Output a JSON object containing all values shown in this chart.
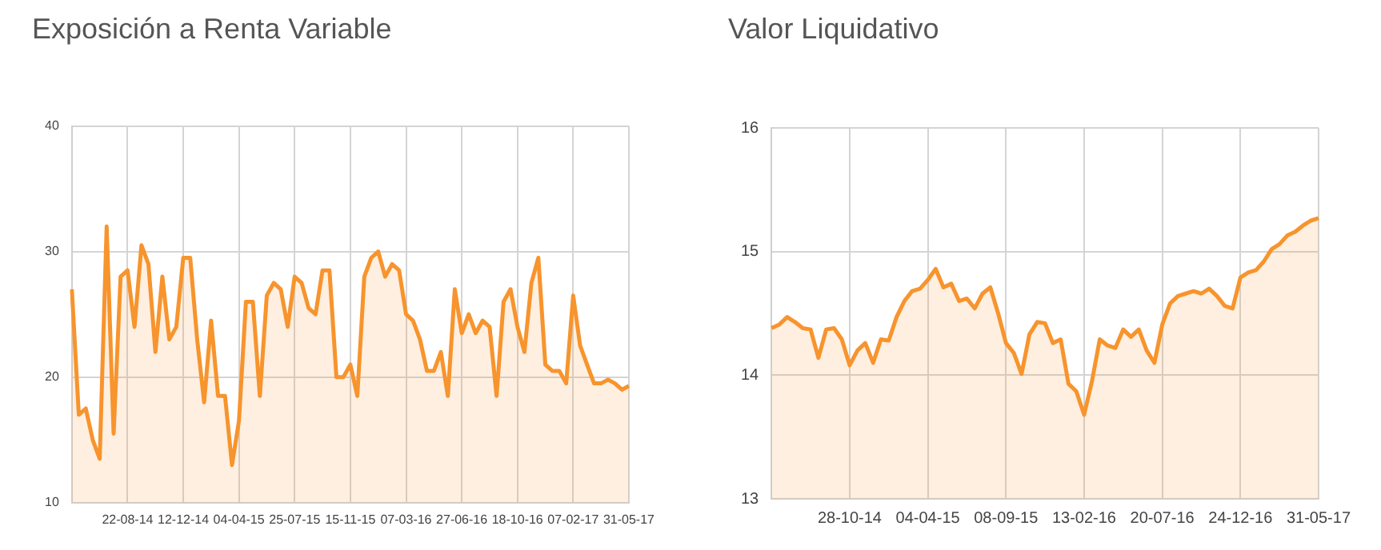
{
  "chart_data": [
    {
      "type": "area",
      "title": "Exposición a Renta Variable",
      "categories": [
        null,
        null,
        null,
        null,
        null,
        null,
        null,
        null,
        "22-08-14",
        null,
        null,
        null,
        null,
        null,
        null,
        null,
        "12-12-14",
        null,
        null,
        null,
        null,
        null,
        null,
        null,
        "04-04-15",
        null,
        null,
        null,
        null,
        null,
        null,
        null,
        "25-07-15",
        null,
        null,
        null,
        null,
        null,
        null,
        null,
        "15-11-15",
        null,
        null,
        null,
        null,
        null,
        null,
        null,
        "07-03-16",
        null,
        null,
        null,
        null,
        null,
        null,
        null,
        "27-06-16",
        null,
        null,
        null,
        null,
        null,
        null,
        null,
        "18-10-16",
        null,
        null,
        null,
        null,
        null,
        null,
        null,
        "07-02-17",
        null,
        null,
        null,
        null,
        null,
        null,
        null,
        "31-05-17"
      ],
      "series": [
        {
          "color": "#f7942d",
          "values": [
            27,
            17,
            17.5,
            15,
            13.5,
            32,
            15.5,
            28,
            28.5,
            24,
            30.5,
            29,
            22,
            28,
            23,
            24,
            29.5,
            29.5,
            23,
            18,
            24.5,
            18.5,
            18.5,
            13,
            16.5,
            26,
            26,
            18.5,
            26.5,
            27.5,
            27,
            24,
            28,
            27.5,
            25.5,
            25,
            28.5,
            28.5,
            20,
            20,
            21,
            18.5,
            28,
            29.5,
            30,
            28,
            29,
            28.5,
            25,
            24.5,
            23,
            20.5,
            20.5,
            22,
            18.5,
            27,
            23.5,
            25,
            23.5,
            24.5,
            24,
            18.5,
            26,
            27,
            24,
            22,
            27.5,
            29.5,
            21,
            20.5,
            20.5,
            19.5,
            26.5,
            22.5,
            21,
            19.5,
            19.5,
            19.8,
            19.5,
            19,
            19.3
          ]
        }
      ],
      "ylim": [
        10,
        40
      ],
      "yticks": [
        10,
        20,
        30,
        40
      ],
      "grid": true
    },
    {
      "type": "area",
      "title": "Valor Liquidativo",
      "categories": [
        null,
        null,
        null,
        null,
        null,
        null,
        null,
        null,
        null,
        null,
        "28-10-14",
        null,
        null,
        null,
        null,
        null,
        null,
        null,
        null,
        null,
        "04-04-15",
        null,
        null,
        null,
        null,
        null,
        null,
        null,
        null,
        null,
        "08-09-15",
        null,
        null,
        null,
        null,
        null,
        null,
        null,
        null,
        null,
        "13-02-16",
        null,
        null,
        null,
        null,
        null,
        null,
        null,
        null,
        null,
        "20-07-16",
        null,
        null,
        null,
        null,
        null,
        null,
        null,
        null,
        null,
        "24-12-16",
        null,
        null,
        null,
        null,
        null,
        null,
        null,
        null,
        null,
        "31-05-17"
      ],
      "series": [
        {
          "color": "#f7942d",
          "values": [
            14.38,
            14.41,
            14.47,
            14.43,
            14.38,
            14.37,
            14.14,
            14.37,
            14.38,
            14.29,
            14.08,
            14.2,
            14.26,
            14.1,
            14.29,
            14.28,
            14.47,
            14.6,
            14.68,
            14.7,
            14.77,
            14.86,
            14.71,
            14.74,
            14.6,
            14.62,
            14.54,
            14.66,
            14.71,
            14.5,
            14.26,
            14.18,
            14.01,
            14.33,
            14.43,
            14.42,
            14.26,
            14.29,
            13.93,
            13.87,
            13.68,
            13.95,
            14.29,
            14.24,
            14.22,
            14.37,
            14.31,
            14.37,
            14.2,
            14.1,
            14.41,
            14.58,
            14.64,
            14.66,
            14.68,
            14.66,
            14.7,
            14.64,
            14.56,
            14.54,
            14.79,
            14.83,
            14.85,
            14.92,
            15.02,
            15.06,
            15.13,
            15.16,
            15.21,
            15.25,
            15.27
          ]
        }
      ],
      "ylim": [
        13,
        16
      ],
      "yticks": [
        13,
        14,
        15,
        16
      ],
      "grid": true
    }
  ]
}
